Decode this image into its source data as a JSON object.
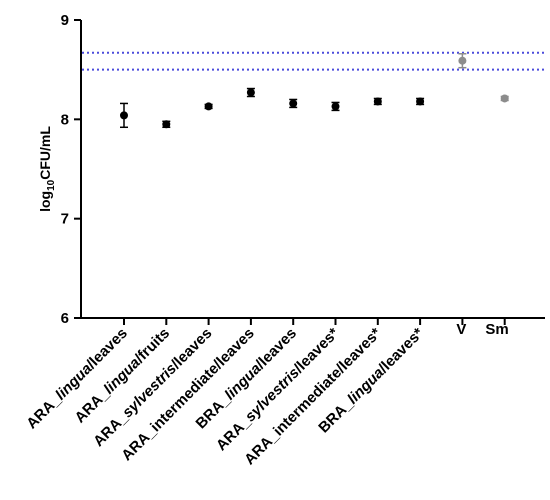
{
  "chart_data": {
    "type": "scatter",
    "ylabel": "log10CFU/mL",
    "ylabel_parts": [
      "log",
      "10",
      "CFU/mL"
    ],
    "ylim": [
      6,
      9
    ],
    "yticks": [
      6,
      7,
      8,
      9
    ],
    "grid": false,
    "categories": [
      {
        "label": "ARA_lingua/leaves",
        "parts": [
          {
            "t": "ARA_",
            "i": false
          },
          {
            "t": "lingua",
            "i": true
          },
          {
            "t": "/leaves",
            "i": false
          }
        ]
      },
      {
        "label": "ARA_lingua/fruits",
        "parts": [
          {
            "t": "ARA_",
            "i": false
          },
          {
            "t": "lingua",
            "i": true
          },
          {
            "t": "/fruits",
            "i": false
          }
        ]
      },
      {
        "label": "ARA_sylvestris/leaves",
        "parts": [
          {
            "t": "ARA_",
            "i": false
          },
          {
            "t": "sylvestris",
            "i": true
          },
          {
            "t": "/leaves",
            "i": false
          }
        ]
      },
      {
        "label": "ARA_intermediate/leaves",
        "parts": [
          {
            "t": "ARA_intermediate/leaves",
            "i": false
          }
        ]
      },
      {
        "label": "BRA_lingua/leaves",
        "parts": [
          {
            "t": "BRA_",
            "i": false
          },
          {
            "t": "lingua",
            "i": true
          },
          {
            "t": "/leaves",
            "i": false
          }
        ]
      },
      {
        "label": "ARA_sylvestris/leaves*",
        "parts": [
          {
            "t": "ARA_",
            "i": false
          },
          {
            "t": "sylvestris",
            "i": true
          },
          {
            "t": "/leaves*",
            "i": false
          }
        ]
      },
      {
        "label": "ARA_intermediate/leaves*",
        "parts": [
          {
            "t": "ARA_intermediate/leaves*",
            "i": false
          }
        ]
      },
      {
        "label": "BRA_lingua/leaves*",
        "parts": [
          {
            "t": "BRA_",
            "i": false
          },
          {
            "t": "lingua",
            "i": true
          },
          {
            "t": "/leaves*",
            "i": false
          }
        ]
      },
      {
        "label": "V",
        "parts": [
          {
            "t": "V",
            "i": false
          }
        ]
      },
      {
        "label": "Sm",
        "parts": [
          {
            "t": "Sm",
            "i": false
          }
        ]
      }
    ],
    "points": [
      {
        "y": 8.04,
        "err": 0.12,
        "color": "#000000"
      },
      {
        "y": 7.95,
        "err": 0.03,
        "color": "#000000"
      },
      {
        "y": 8.13,
        "err": 0.02,
        "color": "#000000"
      },
      {
        "y": 8.27,
        "err": 0.04,
        "color": "#000000"
      },
      {
        "y": 8.16,
        "err": 0.04,
        "color": "#000000"
      },
      {
        "y": 8.13,
        "err": 0.04,
        "color": "#000000"
      },
      {
        "y": 8.18,
        "err": 0.03,
        "color": "#000000"
      },
      {
        "y": 8.18,
        "err": 0.03,
        "color": "#000000"
      },
      {
        "y": 8.59,
        "err": 0.07,
        "color": "#8c8c8c"
      },
      {
        "y": 8.21,
        "err": 0.02,
        "color": "#8c8c8c"
      }
    ],
    "reference_lines": [
      {
        "y": 8.67,
        "color": "#4b4bdc",
        "style": "dotted"
      },
      {
        "y": 8.5,
        "color": "#4b4bdc",
        "style": "dotted"
      }
    ]
  }
}
